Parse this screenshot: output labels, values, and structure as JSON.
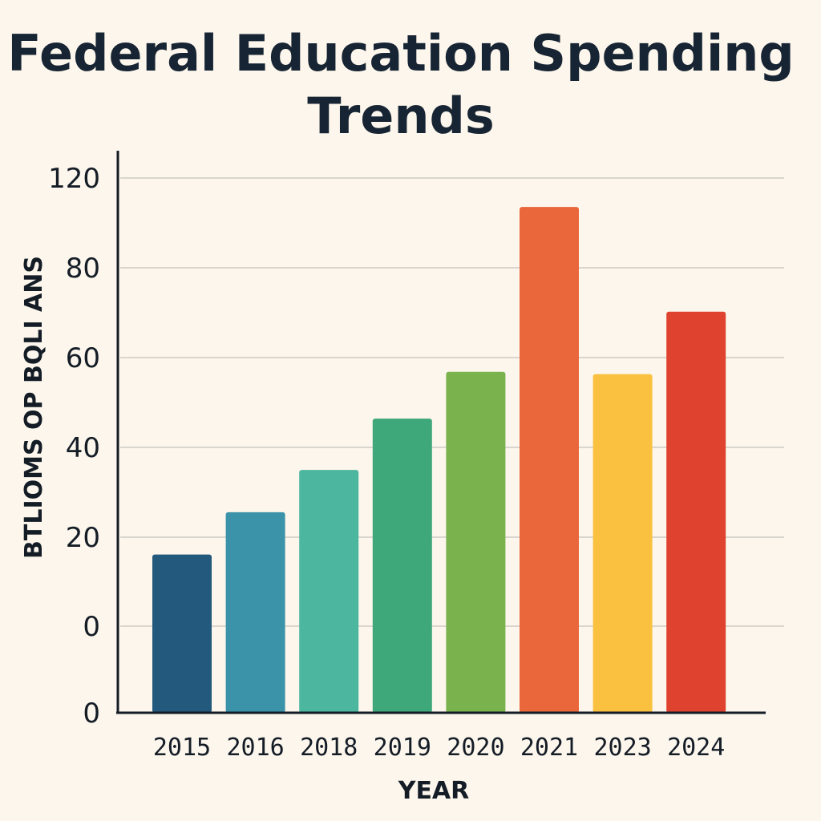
{
  "chart_data": {
    "type": "bar",
    "title": "Federal Education Spending Trends",
    "xlabel": "YEAR",
    "ylabel": "BTLIOMS OP BQLI ANS",
    "categories": [
      "2015",
      "2016",
      "2018",
      "2019",
      "2020",
      "2021",
      "2023",
      "2024"
    ],
    "values": [
      35.5,
      45,
      54.5,
      66,
      76.5,
      113.5,
      76,
      90
    ],
    "colors": [
      "#23597c",
      "#3b93a9",
      "#4db69f",
      "#3fa87a",
      "#7ab24e",
      "#ea673c",
      "#f9c13f",
      "#df432f"
    ],
    "ytick_labels": [
      "0",
      "0",
      "20",
      "40",
      "60",
      "80",
      "120"
    ],
    "ylim": [
      0,
      120
    ],
    "grid": true,
    "legend": "none"
  }
}
